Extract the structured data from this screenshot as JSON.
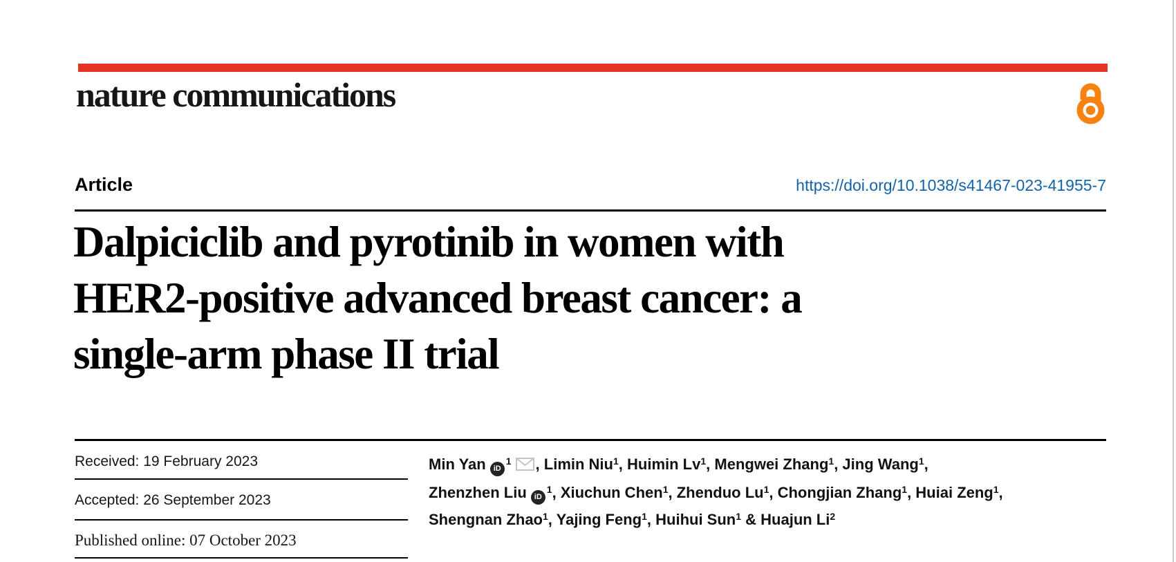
{
  "page": {
    "background": "#ffffff",
    "right_edge_line_color": "#cccccc"
  },
  "header": {
    "journal": "nature communications",
    "bar_color": "#e63323",
    "open_access_color": "#f68212"
  },
  "article": {
    "label": "Article",
    "doi": "https://doi.org/10.1038/s41467-023-41955-7",
    "doi_color": "#1363aa"
  },
  "title": {
    "full": "Dalpiciclib and pyrotinib in women with HER2-positive advanced breast cancer: a single-arm phase II trial",
    "lines": [
      "Dalpiciclib and pyrotinib in women with",
      "HER2-positive advanced breast cancer: a",
      "single-arm phase II trial"
    ]
  },
  "dates": {
    "received": "Received: 19 February 2023",
    "accepted": "Accepted: 26 September 2023",
    "published": "Published online: 07 October 2023"
  },
  "icons": {
    "orcid_glyph": "iD",
    "orcid_meaning": "orcid-id-icon",
    "email_meaning": "email-envelope-icon",
    "open_access_meaning": "open-access-padlock-icon"
  },
  "authors": {
    "lines": [
      [
        {
          "name": "Min Yan",
          "orcid": true,
          "sup": "1",
          "email": true,
          "tail": ", "
        },
        {
          "name": "Limin Niu",
          "sup": "1",
          "tail": ", "
        },
        {
          "name": "Huimin Lv",
          "sup": "1",
          "tail": ", "
        },
        {
          "name": "Mengwei Zhang",
          "sup": "1",
          "tail": ", "
        },
        {
          "name": "Jing Wang",
          "sup": "1",
          "tail": ","
        }
      ],
      [
        {
          "name": "Zhenzhen Liu",
          "orcid": true,
          "sup": "1",
          "tail": ", "
        },
        {
          "name": "Xiuchun Chen",
          "sup": "1",
          "tail": ", "
        },
        {
          "name": "Zhenduo Lu",
          "sup": "1",
          "tail": ", "
        },
        {
          "name": "Chongjian Zhang",
          "sup": "1",
          "tail": ", "
        },
        {
          "name": "Huiai Zeng",
          "sup": "1",
          "tail": ","
        }
      ],
      [
        {
          "name": "Shengnan Zhao",
          "sup": "1",
          "tail": ", "
        },
        {
          "name": "Yajing Feng",
          "sup": "1",
          "tail": ", "
        },
        {
          "name": "Huihui Sun",
          "sup": "1",
          "tail": " & "
        },
        {
          "name": "Huajun Li",
          "sup": "2",
          "tail": ""
        }
      ]
    ]
  }
}
